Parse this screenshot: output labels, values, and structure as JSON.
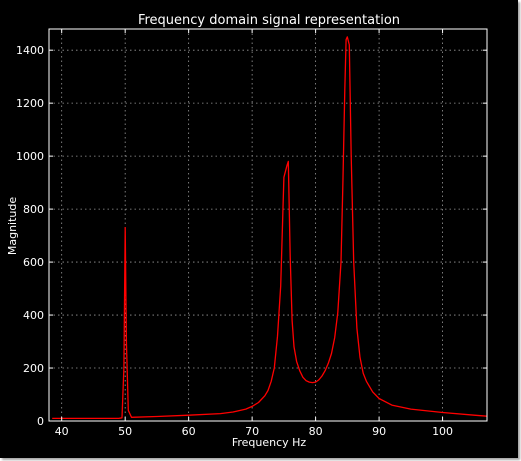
{
  "chart_data": {
    "type": "line",
    "title": "Frequency domain signal representation",
    "xlabel": "Frequency Hz",
    "ylabel": "Magnitude",
    "xlim": [
      38,
      107
    ],
    "ylim": [
      0,
      1480
    ],
    "xticks": [
      40,
      50,
      60,
      70,
      80,
      90,
      100
    ],
    "yticks": [
      0,
      200,
      400,
      600,
      800,
      1000,
      1200,
      1400
    ],
    "grid": true,
    "colors": {
      "background": "#000000",
      "axes": "#ffffff",
      "grid": "#9a9a9a",
      "line": "#ff0000"
    },
    "series": [
      {
        "x": [
          38.5,
          45,
          49,
          49.5,
          49.8,
          50,
          50.2,
          50.5,
          51,
          55,
          60,
          65,
          67,
          69,
          70,
          71,
          72,
          72.5,
          73,
          73.5,
          74,
          74.5,
          75,
          75.5,
          75.7,
          76,
          76.3,
          76.6,
          77,
          77.5,
          78,
          78.5,
          79,
          79.5,
          80,
          80.5,
          81,
          81.5,
          82,
          82.5,
          83,
          83.5,
          84,
          84.3,
          84.6,
          84.8,
          85,
          85.3,
          85.6,
          86,
          86.5,
          87,
          87.5,
          88,
          89,
          90,
          92,
          95,
          100,
          105,
          107
        ],
        "y": [
          10,
          10,
          10,
          12,
          200,
          730,
          300,
          40,
          14,
          17,
          22,
          28,
          34,
          45,
          55,
          70,
          95,
          115,
          150,
          200,
          320,
          510,
          920,
          965,
          980,
          620,
          380,
          280,
          225,
          190,
          165,
          152,
          147,
          145,
          147,
          155,
          170,
          190,
          218,
          255,
          315,
          410,
          600,
          900,
          1250,
          1440,
          1450,
          1420,
          1000,
          600,
          350,
          240,
          180,
          150,
          110,
          85,
          60,
          45,
          32,
          22,
          18
        ]
      }
    ]
  }
}
